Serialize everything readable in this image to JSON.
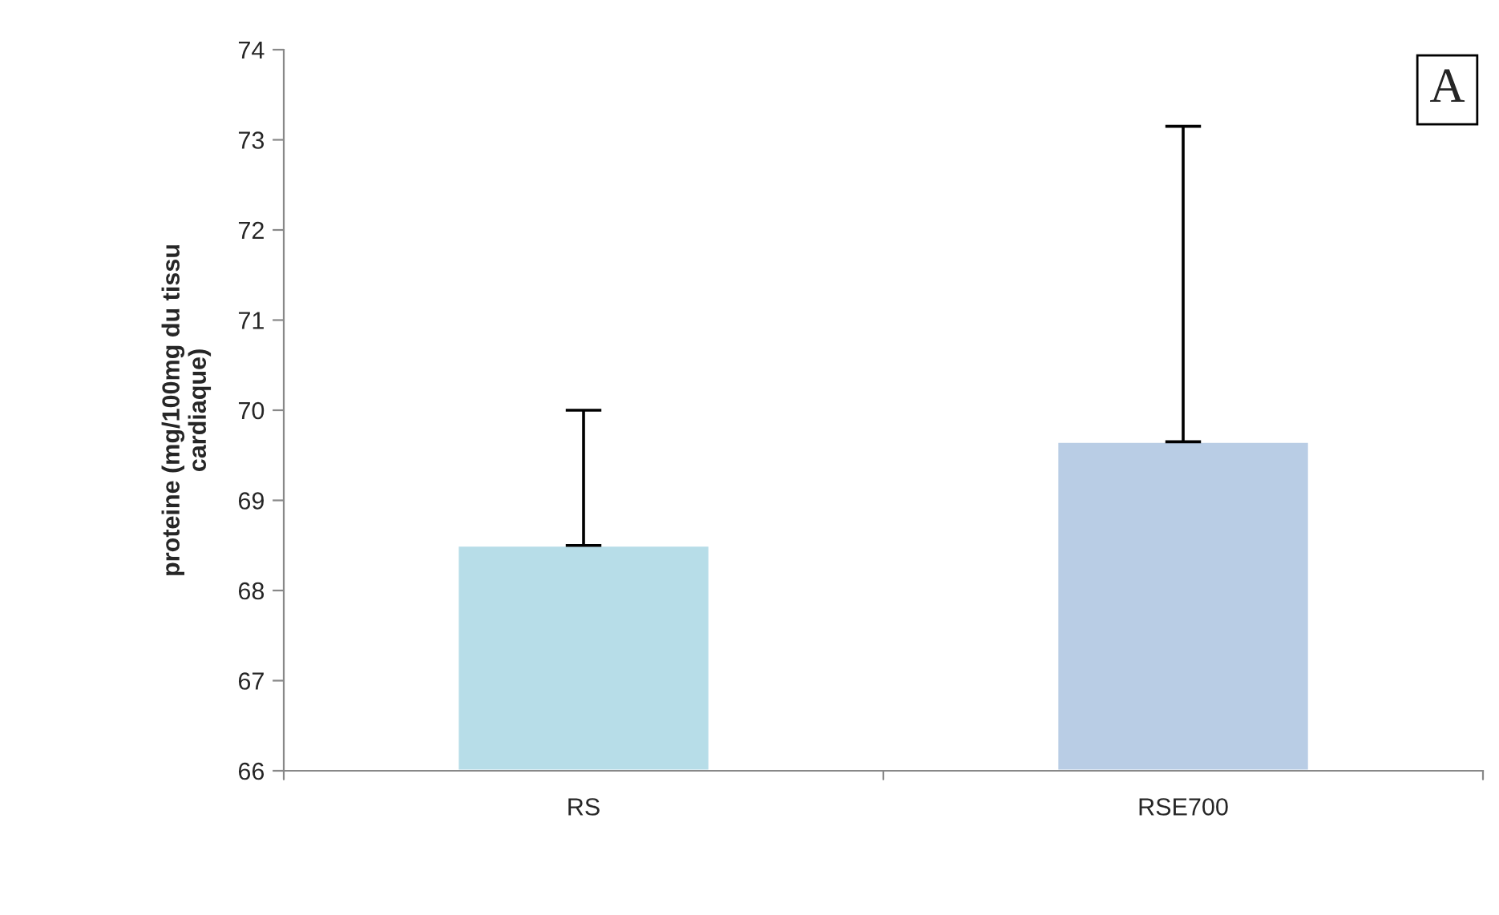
{
  "chart_data": {
    "type": "bar",
    "categories": [
      "RS",
      "RSE700"
    ],
    "values": [
      68.5,
      69.65
    ],
    "colors": [
      "#b7dde8",
      "#b9cde5"
    ],
    "errors": [
      [
        68.5,
        70.0
      ],
      [
        69.65,
        73.15
      ]
    ],
    "ylabel": "proteine (mg/100mg du tissu\ncardiaque)",
    "annotations": [
      "A"
    ],
    "ylim": [
      66,
      74
    ],
    "yticks": [
      66,
      67,
      68,
      69,
      70,
      71,
      72,
      73,
      74
    ],
    "grid": false,
    "legend": false
  }
}
